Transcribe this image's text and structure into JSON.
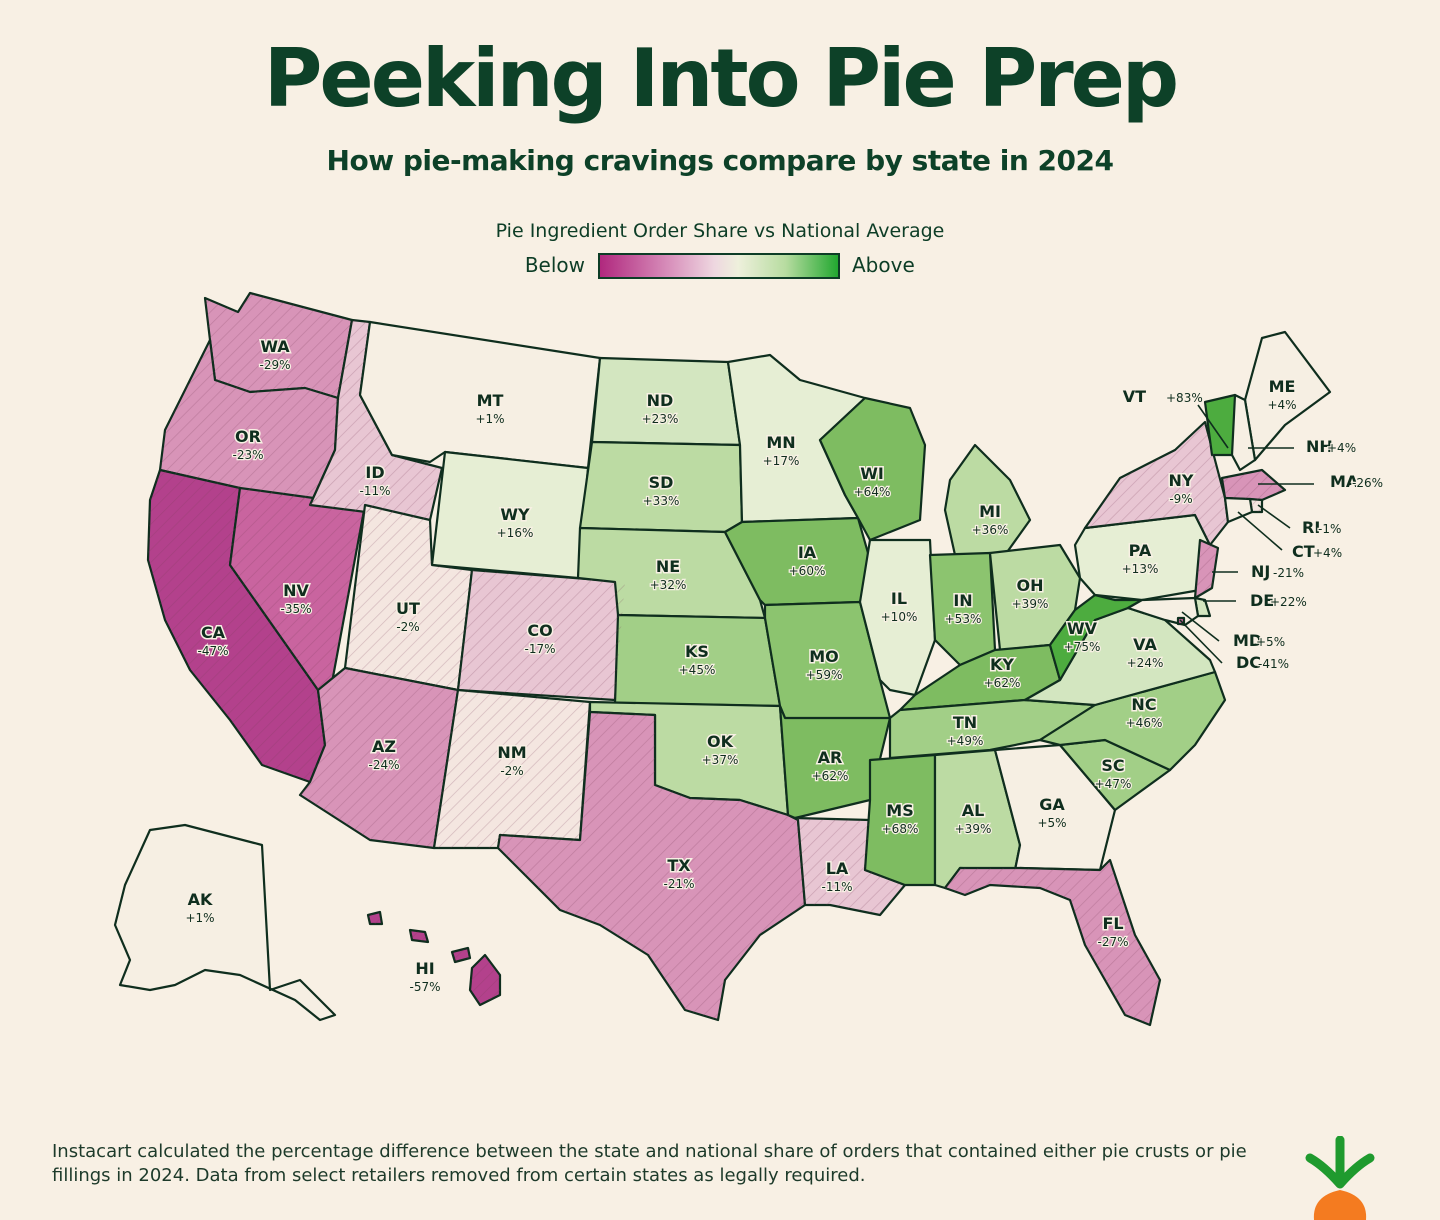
{
  "title": "Peeking Into Pie Prep",
  "subtitle": "How pie-making cravings compare by state in 2024",
  "legend": {
    "title": "Pie Ingredient Order Share vs National Average",
    "below": "Below",
    "above": "Above"
  },
  "footnote": "Instacart calculated the percentage difference between the state and national share of orders that contained either pie crusts or pie fillings in 2024. Data from select retailers removed from certain states as legally required.",
  "colors": {
    "background": "#f8f0e4",
    "text": "#0d4128",
    "below_strong": "#b0287e",
    "below_light": "#eed7e0",
    "neutral": "#f6efe3",
    "above_light": "#d6e8c4",
    "above_strong": "#22a830"
  },
  "logo_icon": "carrot-icon",
  "chart_data": {
    "type": "choropleth",
    "unit": "%",
    "states": [
      {
        "code": "WA",
        "value": "-29%"
      },
      {
        "code": "OR",
        "value": "-23%"
      },
      {
        "code": "CA",
        "value": "-47%"
      },
      {
        "code": "NV",
        "value": "-35%"
      },
      {
        "code": "ID",
        "value": "-11%"
      },
      {
        "code": "MT",
        "value": "+1%"
      },
      {
        "code": "WY",
        "value": "+16%"
      },
      {
        "code": "UT",
        "value": "-2%"
      },
      {
        "code": "AZ",
        "value": "-24%"
      },
      {
        "code": "CO",
        "value": "-17%"
      },
      {
        "code": "NM",
        "value": "-2%"
      },
      {
        "code": "ND",
        "value": "+23%"
      },
      {
        "code": "SD",
        "value": "+33%"
      },
      {
        "code": "NE",
        "value": "+32%"
      },
      {
        "code": "KS",
        "value": "+45%"
      },
      {
        "code": "OK",
        "value": "+37%"
      },
      {
        "code": "TX",
        "value": "-21%"
      },
      {
        "code": "MN",
        "value": "+17%"
      },
      {
        "code": "IA",
        "value": "+60%"
      },
      {
        "code": "MO",
        "value": "+59%"
      },
      {
        "code": "AR",
        "value": "+62%"
      },
      {
        "code": "LA",
        "value": "-11%"
      },
      {
        "code": "WI",
        "value": "+64%"
      },
      {
        "code": "IL",
        "value": "+10%"
      },
      {
        "code": "MI",
        "value": "+36%"
      },
      {
        "code": "IN",
        "value": "+53%"
      },
      {
        "code": "OH",
        "value": "+39%"
      },
      {
        "code": "KY",
        "value": "+62%"
      },
      {
        "code": "TN",
        "value": "+49%"
      },
      {
        "code": "MS",
        "value": "+68%"
      },
      {
        "code": "AL",
        "value": "+39%"
      },
      {
        "code": "GA",
        "value": "+5%"
      },
      {
        "code": "FL",
        "value": "-27%"
      },
      {
        "code": "SC",
        "value": "+47%"
      },
      {
        "code": "NC",
        "value": "+46%"
      },
      {
        "code": "VA",
        "value": "+24%"
      },
      {
        "code": "WV",
        "value": "+75%"
      },
      {
        "code": "PA",
        "value": "+13%"
      },
      {
        "code": "NY",
        "value": "-9%"
      },
      {
        "code": "ME",
        "value": "+4%"
      },
      {
        "code": "VT",
        "value": "+83%"
      },
      {
        "code": "NH",
        "value": "+4%"
      },
      {
        "code": "MA",
        "value": "-26%"
      },
      {
        "code": "RI",
        "value": "-1%"
      },
      {
        "code": "CT",
        "value": "+4%"
      },
      {
        "code": "NJ",
        "value": "-21%"
      },
      {
        "code": "DE",
        "value": "+22%"
      },
      {
        "code": "MD",
        "value": "+5%"
      },
      {
        "code": "DC",
        "value": "-41%"
      },
      {
        "code": "AK",
        "value": "+1%"
      },
      {
        "code": "HI",
        "value": "-57%"
      }
    ]
  }
}
